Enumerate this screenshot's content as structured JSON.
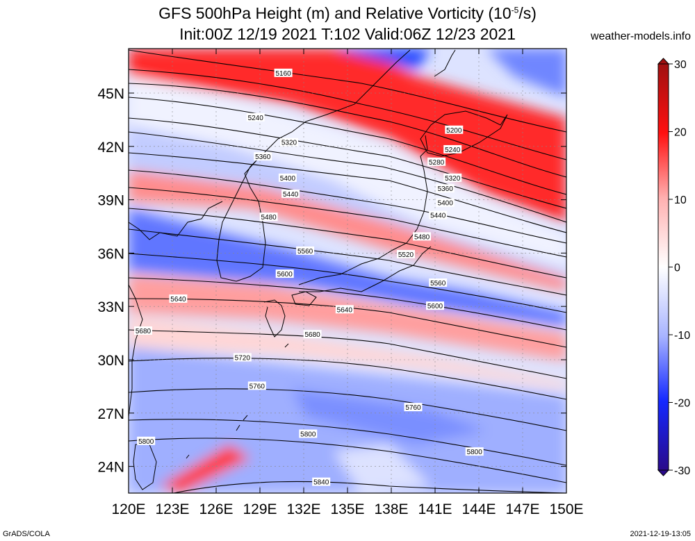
{
  "header": {
    "title_line1": "GFS 500hPa Height (m) and Relative Vorticity (10",
    "title_sup": "-5",
    "title_line1_end": "/s)",
    "title_line2": "Init:00Z 12/19 2021 T:102 Valid:06Z 12/23 2021",
    "site": "weather-models.info"
  },
  "footer": {
    "left": "GrADS/COLA",
    "right": "2021-12-19-13:05"
  },
  "map": {
    "lon_range": [
      120,
      150
    ],
    "lat_range": [
      22.5,
      47.5
    ],
    "lon_ticks": [
      "120E",
      "123E",
      "126E",
      "129E",
      "132E",
      "135E",
      "138E",
      "141E",
      "144E",
      "147E",
      "150E"
    ],
    "lat_ticks": [
      "24N",
      "27N",
      "30N",
      "33N",
      "36N",
      "39N",
      "42N",
      "45N"
    ],
    "contour_labels": [
      {
        "text": "5160",
        "lon": 130.6,
        "lat": 46.1
      },
      {
        "text": "5240",
        "lon": 128.7,
        "lat": 43.6
      },
      {
        "text": "5200",
        "lon": 142.3,
        "lat": 42.9
      },
      {
        "text": "5240",
        "lon": 142.2,
        "lat": 41.8
      },
      {
        "text": "5320",
        "lon": 131.0,
        "lat": 42.2
      },
      {
        "text": "5360",
        "lon": 129.2,
        "lat": 41.4
      },
      {
        "text": "5280",
        "lon": 141.1,
        "lat": 41.1
      },
      {
        "text": "5400",
        "lon": 130.9,
        "lat": 40.2
      },
      {
        "text": "5320",
        "lon": 142.2,
        "lat": 40.2
      },
      {
        "text": "5440",
        "lon": 131.1,
        "lat": 39.3
      },
      {
        "text": "5360",
        "lon": 141.7,
        "lat": 39.6
      },
      {
        "text": "5400",
        "lon": 141.7,
        "lat": 38.8
      },
      {
        "text": "5480",
        "lon": 129.6,
        "lat": 38.0
      },
      {
        "text": "5440",
        "lon": 141.2,
        "lat": 38.1
      },
      {
        "text": "5480",
        "lon": 140.1,
        "lat": 36.9
      },
      {
        "text": "5560",
        "lon": 132.1,
        "lat": 36.1
      },
      {
        "text": "5520",
        "lon": 139.0,
        "lat": 35.9
      },
      {
        "text": "5600",
        "lon": 130.7,
        "lat": 34.8
      },
      {
        "text": "5560",
        "lon": 141.2,
        "lat": 34.3
      },
      {
        "text": "5640",
        "lon": 123.4,
        "lat": 33.4
      },
      {
        "text": "5600",
        "lon": 141.0,
        "lat": 33.0
      },
      {
        "text": "5640",
        "lon": 134.8,
        "lat": 32.8
      },
      {
        "text": "5680",
        "lon": 121.0,
        "lat": 31.6
      },
      {
        "text": "5680",
        "lon": 132.6,
        "lat": 31.4
      },
      {
        "text": "5720",
        "lon": 127.8,
        "lat": 30.1
      },
      {
        "text": "5760",
        "lon": 128.8,
        "lat": 28.5
      },
      {
        "text": "5760",
        "lon": 139.5,
        "lat": 27.3
      },
      {
        "text": "5800",
        "lon": 121.2,
        "lat": 25.4
      },
      {
        "text": "5800",
        "lon": 132.3,
        "lat": 25.8
      },
      {
        "text": "5800",
        "lon": 143.7,
        "lat": 24.8
      },
      {
        "text": "5840",
        "lon": 133.2,
        "lat": 23.1
      }
    ]
  },
  "colorbar": {
    "labels": [
      "30",
      "20",
      "10",
      "0",
      "-10",
      "-20",
      "-30"
    ],
    "values": [
      30,
      20,
      10,
      0,
      -10,
      -20,
      -30
    ],
    "colors": {
      "pos_max": "#a01010",
      "pos_mid": "#ff1010",
      "neutral": "#ffffff",
      "neg_mid": "#1428ff",
      "neg_max": "#2a0a8a"
    }
  }
}
